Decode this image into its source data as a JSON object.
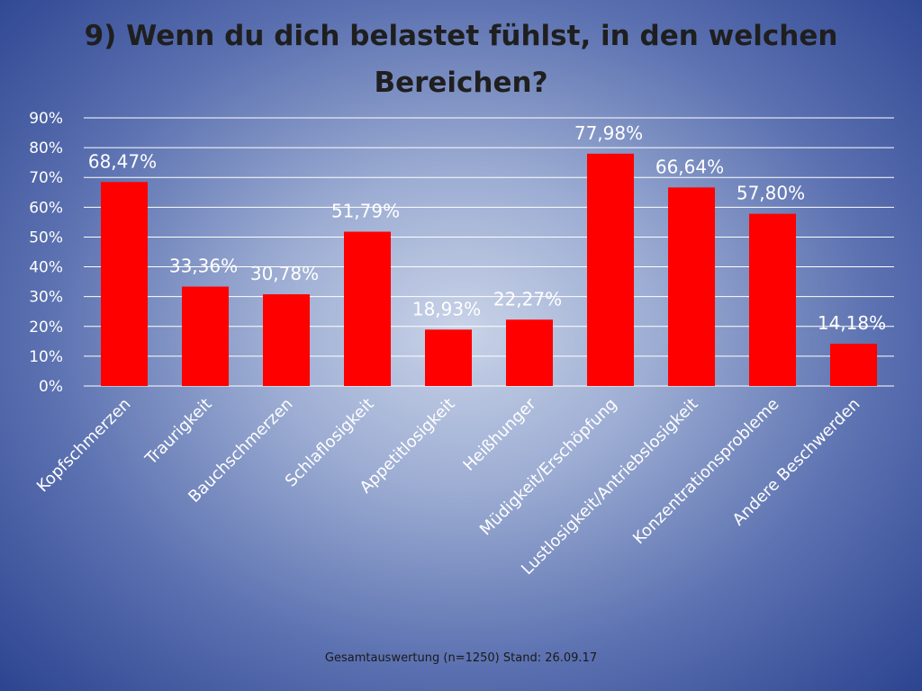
{
  "slide": {
    "title_line1": "9) Wenn du dich belastet fühlst, in den welchen",
    "title_line2": "Bereichen?",
    "footer": "Gesamtauswertung (n=1250) Stand: 26.09.17"
  },
  "colors": {
    "bar": "#ff0000",
    "gridline": "#ffffff",
    "text": "#ffffff"
  },
  "chart_data": {
    "type": "bar",
    "title": "9) Wenn du dich belastet fühlst, in den welchen Bereichen?",
    "xlabel": "",
    "ylabel": "",
    "categories": [
      "Kopfschmerzen",
      "Traurigkeit",
      "Bauchschmerzen",
      "Schlaflosigkeit",
      "Appetitlosigkeit",
      "Heißhunger",
      "Müdigkeit/Erschöpfung",
      "Lustlosigkeit/Antriebslosigkeit",
      "Konzentrationsprobleme",
      "Andere Beschwerden"
    ],
    "values": [
      68.47,
      33.36,
      30.78,
      51.79,
      18.93,
      22.27,
      77.98,
      66.64,
      57.8,
      14.18
    ],
    "data_labels": [
      "68,47%",
      "33,36%",
      "30,78%",
      "51,79%",
      "18,93%",
      "22,27%",
      "77,98%",
      "66,64%",
      "57,80%",
      "14,18%"
    ],
    "ylim": [
      0,
      90
    ],
    "yticks": [
      0,
      10,
      20,
      30,
      40,
      50,
      60,
      70,
      80,
      90
    ],
    "ytick_labels": [
      "0%",
      "10%",
      "20%",
      "30%",
      "40%",
      "50%",
      "60%",
      "70%",
      "80%",
      "90%"
    ],
    "grid": true,
    "legend": "none"
  }
}
